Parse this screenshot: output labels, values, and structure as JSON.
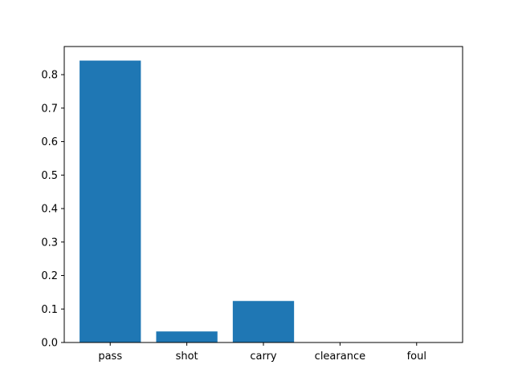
{
  "chart_data": {
    "type": "bar",
    "title": "",
    "xlabel": "",
    "ylabel": "",
    "categories": [
      "pass",
      "shot",
      "carry",
      "clearance",
      "foul"
    ],
    "values": [
      0.842,
      0.033,
      0.124,
      0.0,
      0.0
    ],
    "ylim": [
      0,
      0.884
    ],
    "yticks": [
      0.0,
      0.1,
      0.2,
      0.3,
      0.4,
      0.5,
      0.6,
      0.7,
      0.8
    ],
    "ytick_labels": [
      "0.0",
      "0.1",
      "0.2",
      "0.3",
      "0.4",
      "0.5",
      "0.6",
      "0.7",
      "0.8"
    ],
    "bar_color": "#1f77b4",
    "grid": false,
    "legend": "none"
  }
}
